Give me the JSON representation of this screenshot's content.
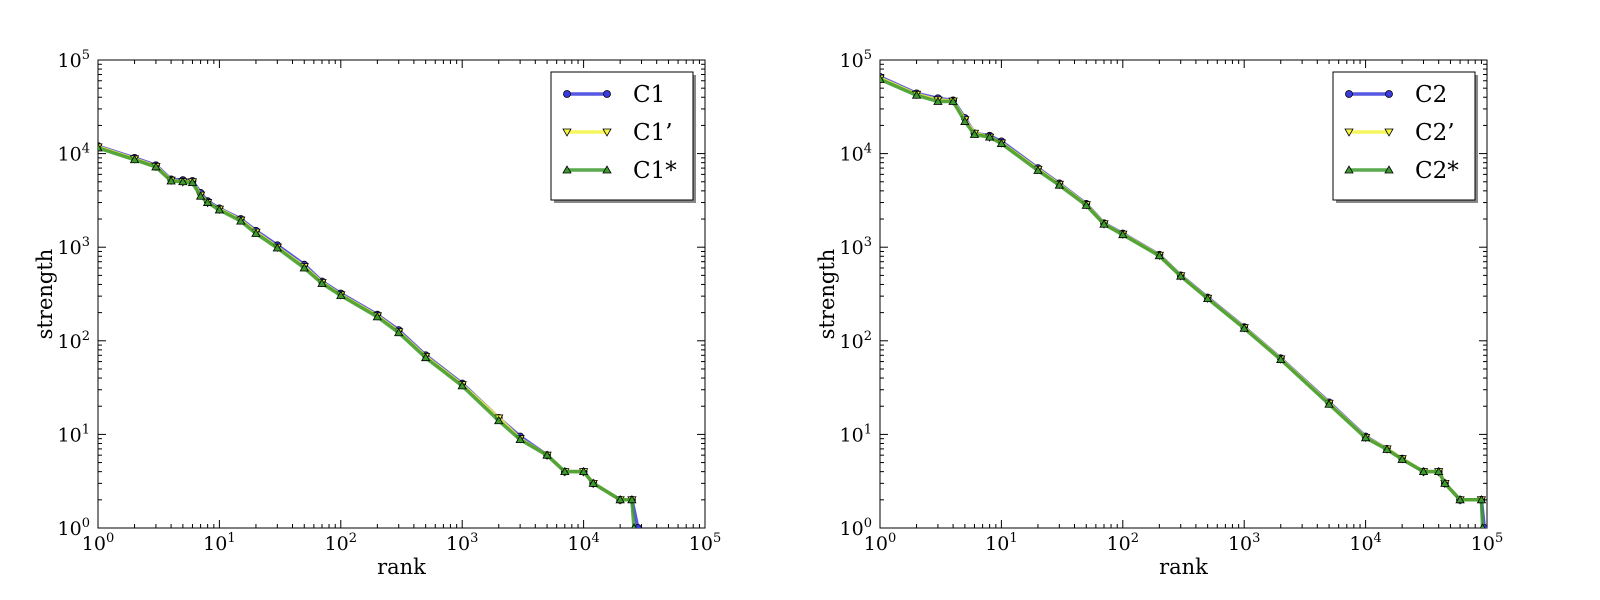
{
  "chart_data": [
    {
      "type": "line",
      "xlabel": "rank",
      "ylabel": "strength",
      "xscale": "log",
      "yscale": "log",
      "xlim": [
        1,
        100000
      ],
      "ylim": [
        1,
        100000
      ],
      "xticks": [
        {
          "base": "10",
          "exp": "0"
        },
        {
          "base": "10",
          "exp": "1"
        },
        {
          "base": "10",
          "exp": "2"
        },
        {
          "base": "10",
          "exp": "3"
        },
        {
          "base": "10",
          "exp": "4"
        },
        {
          "base": "10",
          "exp": "5"
        }
      ],
      "yticks": [
        {
          "base": "10",
          "exp": "0"
        },
        {
          "base": "10",
          "exp": "1"
        },
        {
          "base": "10",
          "exp": "2"
        },
        {
          "base": "10",
          "exp": "3"
        },
        {
          "base": "10",
          "exp": "4"
        },
        {
          "base": "10",
          "exp": "5"
        }
      ],
      "legend_position": "top-right",
      "series": [
        {
          "name": "C1",
          "color": "#3a3adf",
          "marker": "circle",
          "x": [
            1,
            2,
            3,
            4,
            5,
            6,
            7,
            8,
            10,
            15,
            20,
            30,
            50,
            70,
            100,
            200,
            300,
            500,
            1000,
            2000,
            3000,
            5000,
            7000,
            10000,
            12000,
            20000,
            25000,
            28000
          ],
          "y": [
            12000,
            9000,
            7500,
            5300,
            5200,
            5100,
            3800,
            3100,
            2600,
            2000,
            1500,
            1050,
            650,
            430,
            320,
            190,
            130,
            70,
            35,
            15,
            9.5,
            6,
            4,
            4,
            3,
            2,
            2,
            1
          ]
        },
        {
          "name": "C1’",
          "color": "#f5f542",
          "marker": "triangle-down",
          "x": [
            1,
            2,
            3,
            4,
            5,
            6,
            7,
            8,
            10,
            15,
            20,
            30,
            50,
            70,
            100,
            200,
            300,
            500,
            1000,
            2000,
            3000,
            5000,
            7000,
            10000,
            12000,
            20000,
            25000
          ],
          "y": [
            11800,
            8800,
            7300,
            5200,
            5000,
            5000,
            3600,
            3000,
            2550,
            1950,
            1450,
            1000,
            620,
            420,
            310,
            185,
            125,
            68,
            34,
            15,
            9,
            6,
            4,
            4,
            3,
            2,
            2
          ]
        },
        {
          "name": "C1*",
          "color": "#3c9a2e",
          "marker": "triangle-up",
          "x": [
            1,
            2,
            3,
            4,
            5,
            6,
            7,
            8,
            10,
            15,
            20,
            30,
            50,
            70,
            100,
            200,
            300,
            500,
            1000,
            2000,
            3000,
            5000,
            7000,
            10000,
            12000,
            20000,
            25000,
            26000
          ],
          "y": [
            11500,
            8600,
            7200,
            5100,
            5000,
            4900,
            3500,
            3000,
            2500,
            1900,
            1400,
            980,
            600,
            410,
            305,
            180,
            122,
            66,
            33,
            14,
            8.8,
            6,
            4,
            4,
            3,
            2,
            2,
            1
          ]
        }
      ]
    },
    {
      "type": "line",
      "xlabel": "rank",
      "ylabel": "strength",
      "xscale": "log",
      "yscale": "log",
      "xlim": [
        1,
        100000
      ],
      "ylim": [
        1,
        100000
      ],
      "xticks": [
        {
          "base": "10",
          "exp": "0"
        },
        {
          "base": "10",
          "exp": "1"
        },
        {
          "base": "10",
          "exp": "2"
        },
        {
          "base": "10",
          "exp": "3"
        },
        {
          "base": "10",
          "exp": "4"
        },
        {
          "base": "10",
          "exp": "5"
        }
      ],
      "yticks": [
        {
          "base": "10",
          "exp": "0"
        },
        {
          "base": "10",
          "exp": "1"
        },
        {
          "base": "10",
          "exp": "2"
        },
        {
          "base": "10",
          "exp": "3"
        },
        {
          "base": "10",
          "exp": "4"
        },
        {
          "base": "10",
          "exp": "5"
        }
      ],
      "legend_position": "top-right",
      "series": [
        {
          "name": "C2",
          "color": "#3a3adf",
          "marker": "circle",
          "x": [
            1,
            2,
            3,
            4,
            5,
            6,
            8,
            10,
            20,
            30,
            50,
            70,
            100,
            200,
            300,
            500,
            1000,
            2000,
            5000,
            10000,
            15000,
            20000,
            30000,
            40000,
            45000,
            60000,
            90000,
            95000
          ],
          "y": [
            66000,
            44000,
            39000,
            37000,
            24000,
            16500,
            15500,
            13500,
            7000,
            4800,
            2900,
            1800,
            1400,
            830,
            500,
            290,
            140,
            65,
            22,
            9.5,
            7,
            5.5,
            4,
            4,
            3,
            2,
            2,
            1
          ]
        },
        {
          "name": "C2’",
          "color": "#f5f542",
          "marker": "triangle-down",
          "x": [
            1,
            2,
            3,
            4,
            5,
            6,
            8,
            10,
            20,
            30,
            50,
            70,
            100,
            200,
            300,
            500,
            1000,
            2000,
            5000,
            10000,
            15000,
            20000,
            30000,
            40000,
            45000,
            60000,
            90000
          ],
          "y": [
            64000,
            43000,
            37500,
            36500,
            23000,
            16500,
            15000,
            13000,
            6800,
            4700,
            2850,
            1780,
            1380,
            820,
            495,
            285,
            138,
            64,
            21.5,
            9.3,
            7,
            5.5,
            4,
            4,
            3,
            2,
            2
          ]
        },
        {
          "name": "C2*",
          "color": "#3c9a2e",
          "marker": "triangle-up",
          "x": [
            1,
            2,
            3,
            4,
            5,
            6,
            8,
            10,
            20,
            30,
            50,
            70,
            100,
            200,
            300,
            500,
            1000,
            2000,
            5000,
            10000,
            15000,
            20000,
            30000,
            40000,
            45000,
            60000,
            90000,
            92000
          ],
          "y": [
            62000,
            42000,
            36000,
            36000,
            22000,
            16000,
            15000,
            12800,
            6600,
            4600,
            2800,
            1760,
            1360,
            810,
            490,
            282,
            136,
            63,
            21,
            9.2,
            6.9,
            5.4,
            4,
            4,
            3,
            2,
            2,
            1
          ]
        }
      ]
    }
  ]
}
